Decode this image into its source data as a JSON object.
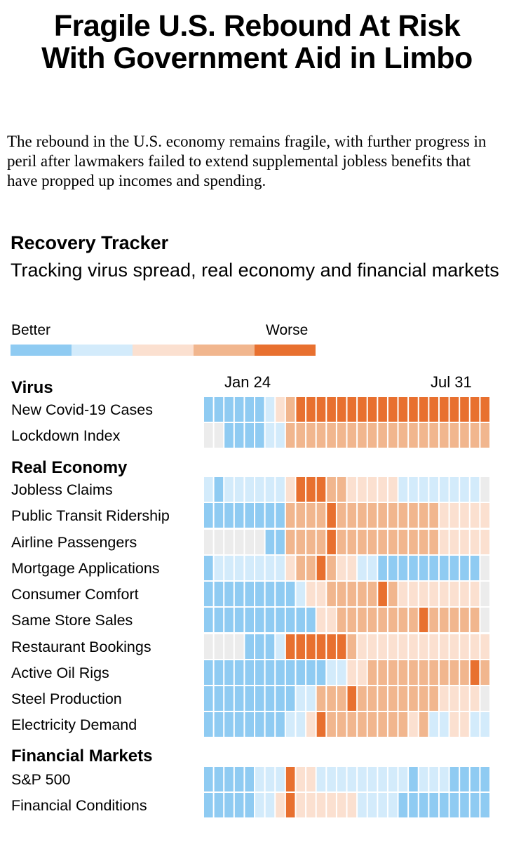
{
  "headline": {
    "line1": "Fragile U.S. Rebound At Risk",
    "line2": "With Government Aid in Limbo"
  },
  "dek": "The rebound in the U.S. economy remains fragile, with further progress in peril after lawmakers failed to extend supplemental jobless benefits that have propped up incomes and spending.",
  "colors": {
    "scale": [
      "#8fcbf2",
      "#d3ebfb",
      "#fbe0d0",
      "#f1b68e",
      "#e8702f"
    ],
    "missing": "#ececec"
  },
  "chart_data": {
    "type": "heatmap",
    "title": "Recovery Tracker",
    "subtitle": "Tracking virus spread, real economy and financial markets",
    "legend": {
      "better": "Better",
      "worse": "Worse",
      "levels": [
        "very better",
        "better",
        "worse",
        "much worse",
        "very worse"
      ]
    },
    "x_ticks": {
      "start": "Jan 24",
      "end": "Jul 31"
    },
    "columns": 28,
    "value_key": "-1 = no data, 0 = most better (dark blue) ... 4 = most worse (dark orange)",
    "sections": [
      {
        "name": "Virus",
        "rows": [
          {
            "label": "New Covid-19 Cases",
            "values": [
              0,
              0,
              0,
              0,
              0,
              0,
              1,
              2,
              3,
              4,
              4,
              4,
              4,
              4,
              4,
              4,
              4,
              4,
              4,
              4,
              4,
              4,
              4,
              4,
              4,
              4,
              4,
              4
            ]
          },
          {
            "label": "Lockdown Index",
            "values": [
              -1,
              -1,
              0,
              0,
              0,
              0,
              1,
              1,
              3,
              3,
              3,
              3,
              3,
              3,
              3,
              3,
              3,
              3,
              3,
              3,
              3,
              3,
              3,
              3,
              3,
              3,
              3,
              3
            ]
          }
        ]
      },
      {
        "name": "Real Economy",
        "rows": [
          {
            "label": "Jobless Claims",
            "values": [
              1,
              0,
              1,
              1,
              1,
              1,
              1,
              1,
              2,
              4,
              4,
              4,
              3,
              3,
              2,
              2,
              2,
              2,
              2,
              1,
              1,
              1,
              1,
              1,
              1,
              1,
              1,
              -1
            ]
          },
          {
            "label": "Public Transit Ridership",
            "values": [
              0,
              0,
              0,
              0,
              0,
              0,
              0,
              0,
              3,
              3,
              3,
              3,
              4,
              3,
              3,
              3,
              3,
              3,
              3,
              3,
              3,
              3,
              3,
              2,
              2,
              2,
              2,
              2
            ]
          },
          {
            "label": "Airline Passengers",
            "values": [
              -1,
              -1,
              -1,
              -1,
              -1,
              -1,
              0,
              0,
              3,
              3,
              3,
              3,
              4,
              3,
              3,
              3,
              3,
              3,
              3,
              3,
              3,
              3,
              3,
              2,
              2,
              2,
              2,
              2
            ]
          },
          {
            "label": "Mortgage Applications",
            "values": [
              0,
              1,
              1,
              1,
              1,
              1,
              1,
              1,
              2,
              3,
              3,
              4,
              3,
              2,
              2,
              1,
              1,
              0,
              0,
              0,
              0,
              0,
              0,
              0,
              0,
              0,
              0,
              -1
            ]
          },
          {
            "label": "Consumer Comfort",
            "values": [
              0,
              0,
              0,
              0,
              0,
              0,
              0,
              0,
              0,
              1,
              2,
              2,
              3,
              3,
              3,
              3,
              3,
              4,
              3,
              2,
              2,
              2,
              2,
              2,
              2,
              2,
              2,
              -1
            ]
          },
          {
            "label": "Same Store Sales",
            "values": [
              0,
              0,
              0,
              0,
              0,
              0,
              0,
              0,
              0,
              0,
              0,
              2,
              2,
              3,
              3,
              3,
              3,
              3,
              3,
              3,
              3,
              4,
              3,
              3,
              3,
              3,
              3,
              -1
            ]
          },
          {
            "label": "Restaurant Bookings",
            "values": [
              -1,
              -1,
              -1,
              -1,
              0,
              0,
              0,
              1,
              4,
              4,
              4,
              4,
              4,
              4,
              3,
              2,
              2,
              2,
              2,
              2,
              2,
              2,
              2,
              2,
              2,
              2,
              2,
              2
            ]
          },
          {
            "label": "Active Oil Rigs",
            "values": [
              0,
              0,
              0,
              0,
              0,
              0,
              0,
              0,
              0,
              0,
              0,
              0,
              1,
              1,
              2,
              2,
              3,
              3,
              3,
              3,
              3,
              3,
              3,
              3,
              3,
              3,
              4,
              3
            ]
          },
          {
            "label": "Steel Production",
            "values": [
              0,
              0,
              0,
              0,
              0,
              0,
              0,
              0,
              0,
              1,
              1,
              3,
              3,
              3,
              4,
              3,
              3,
              3,
              3,
              3,
              3,
              3,
              3,
              2,
              2,
              2,
              2,
              -1
            ]
          },
          {
            "label": "Electricity Demand",
            "values": [
              0,
              0,
              0,
              0,
              0,
              0,
              0,
              0,
              1,
              1,
              2,
              4,
              3,
              3,
              3,
              3,
              3,
              3,
              3,
              3,
              2,
              3,
              1,
              1,
              2,
              2,
              1,
              1
            ]
          }
        ]
      },
      {
        "name": "Financial Markets",
        "rows": [
          {
            "label": "S&P 500",
            "values": [
              0,
              0,
              0,
              0,
              0,
              1,
              1,
              1,
              4,
              2,
              2,
              1,
              1,
              1,
              1,
              1,
              1,
              1,
              1,
              1,
              0,
              1,
              1,
              1,
              0,
              0,
              0,
              0
            ]
          },
          {
            "label": "Financial Conditions",
            "values": [
              0,
              0,
              0,
              0,
              0,
              1,
              1,
              2,
              4,
              2,
              2,
              2,
              2,
              2,
              2,
              1,
              1,
              1,
              1,
              0,
              0,
              0,
              0,
              0,
              0,
              0,
              0,
              0
            ]
          }
        ]
      }
    ]
  }
}
